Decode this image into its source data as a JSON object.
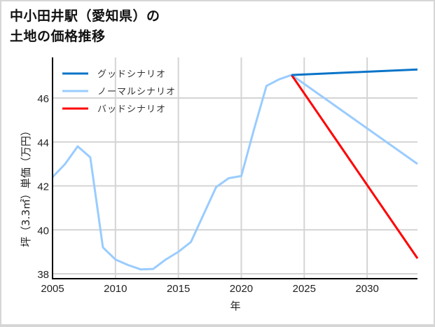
{
  "title_line1": "中小田井駅（愛知県）の",
  "title_line2": "土地の価格推移",
  "chart_data": {
    "type": "line",
    "title": "中小田井駅（愛知県）の土地の価格推移",
    "xlabel": "年",
    "ylabel": "坪（3.3㎡）単価（万円）",
    "xlim": [
      2005,
      2034
    ],
    "ylim": [
      37.8,
      47.9
    ],
    "xticks": [
      2005,
      2010,
      2015,
      2020,
      2025,
      2030
    ],
    "yticks": [
      38,
      40,
      42,
      44,
      46
    ],
    "grid": true,
    "legend_position": "upper left",
    "series": [
      {
        "name": "グッドシナリオ",
        "color": "#0a74c8",
        "x": [
          2024,
          2034
        ],
        "values": [
          47.05,
          47.3
        ]
      },
      {
        "name": "ノーマルシナリオ",
        "color": "#99ccff",
        "x": [
          2005,
          2006,
          2007,
          2008,
          2009,
          2010,
          2011,
          2012,
          2013,
          2014,
          2015,
          2016,
          2017,
          2018,
          2019,
          2020,
          2021,
          2022,
          2023,
          2024,
          2034
        ],
        "values": [
          42.4,
          43.0,
          43.8,
          43.3,
          39.2,
          38.65,
          38.4,
          38.2,
          38.22,
          38.65,
          39.0,
          39.45,
          40.7,
          41.95,
          42.35,
          42.45,
          44.55,
          46.55,
          46.85,
          47.05,
          43.0
        ]
      },
      {
        "name": "バッドシナリオ",
        "color": "#ff0000",
        "x": [
          2024,
          2034
        ],
        "values": [
          47.05,
          38.7
        ]
      }
    ]
  }
}
